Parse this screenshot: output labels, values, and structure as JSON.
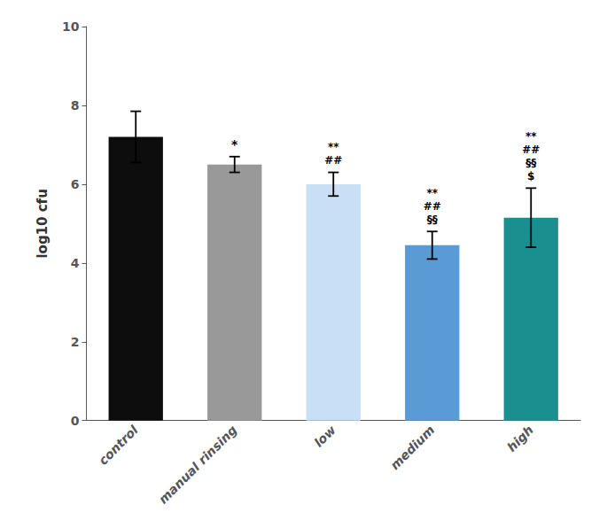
{
  "chart_data": {
    "type": "bar",
    "categories": [
      "control",
      "manual rinsing",
      "low",
      "medium",
      "high"
    ],
    "values": [
      7.2,
      6.5,
      6.0,
      4.45,
      5.15
    ],
    "errors": [
      0.65,
      0.2,
      0.3,
      0.35,
      0.75
    ],
    "colors": [
      "#0d0d0d",
      "#999999",
      "#c8dff5",
      "#5b9bd5",
      "#1a8f8f"
    ],
    "ylabel": "log10 cfu",
    "ylim": [
      0,
      10
    ],
    "yticks": [
      0,
      2,
      4,
      6,
      8,
      10
    ],
    "grid": false,
    "annotations": [
      {
        "category": "manual rinsing",
        "text": "*"
      },
      {
        "category": "low",
        "text": "**\n##"
      },
      {
        "category": "medium",
        "text": "**\n##\n§§"
      },
      {
        "category": "high",
        "text": "**\n##\n§§\n$"
      }
    ]
  }
}
